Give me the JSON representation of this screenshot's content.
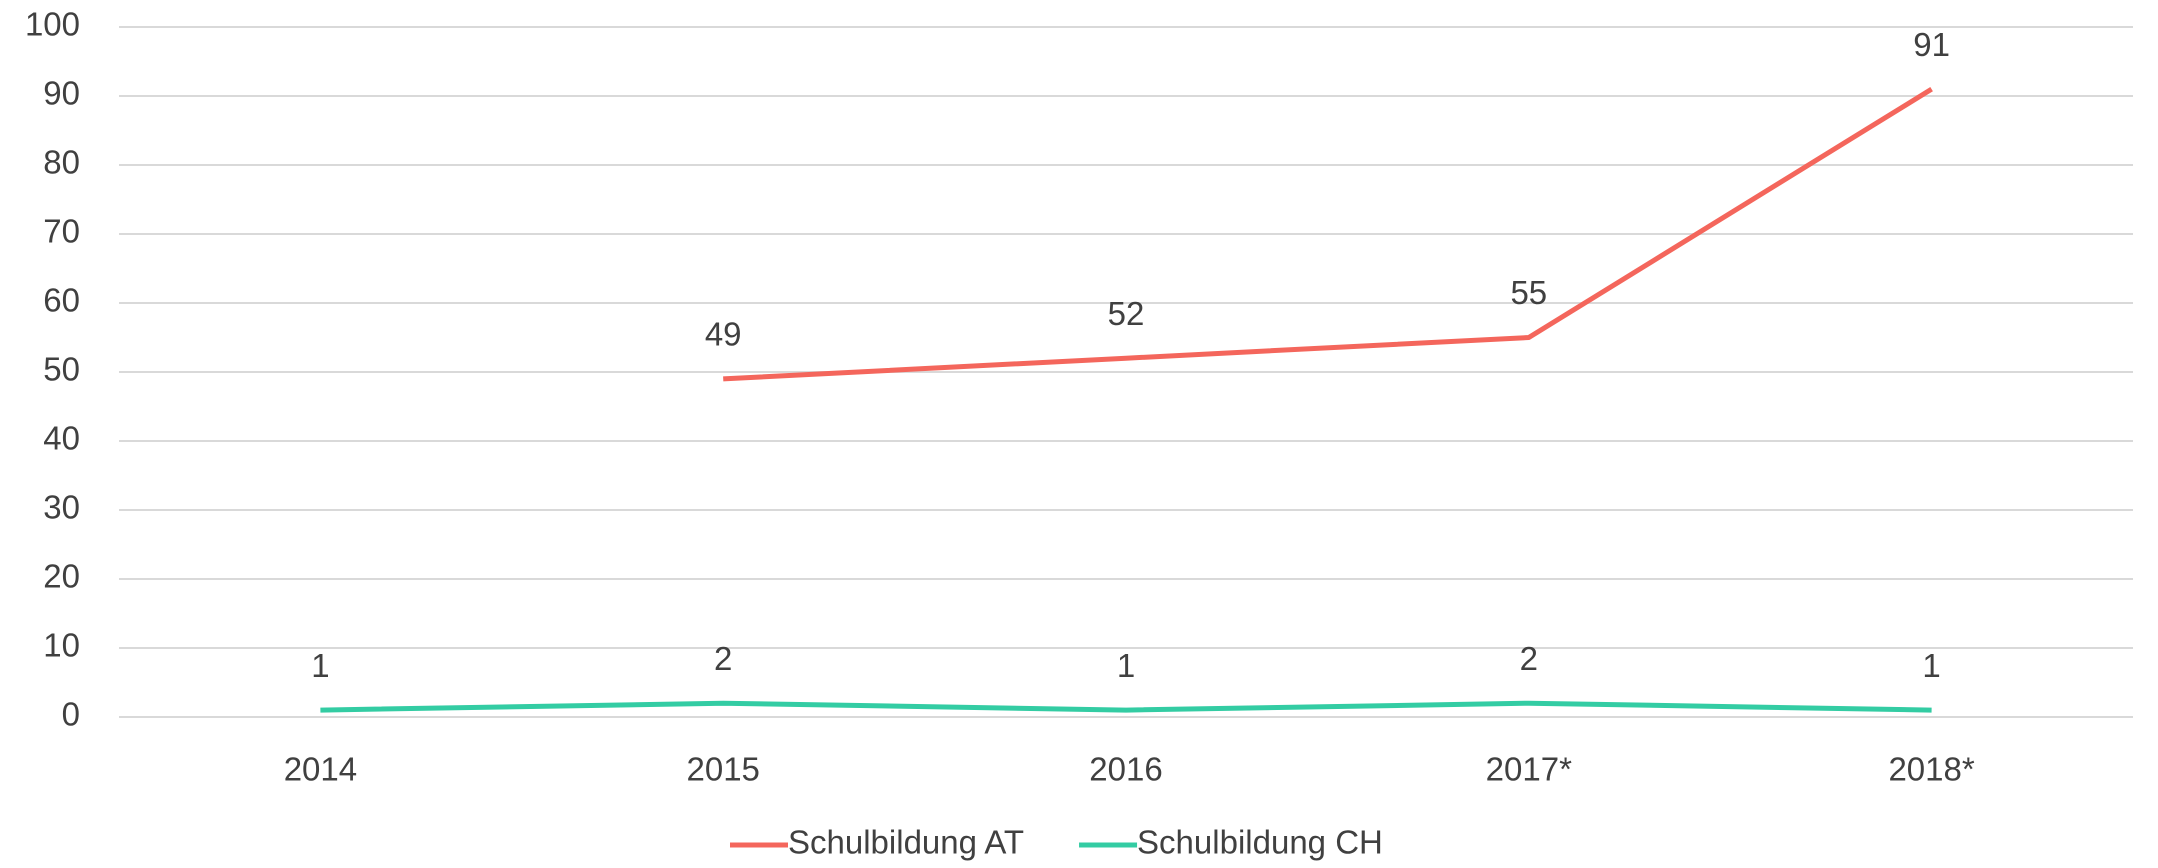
{
  "chart_data": {
    "type": "line",
    "categories": [
      "2014",
      "2015",
      "2016",
      "2017*",
      "2018*"
    ],
    "series": [
      {
        "name": "Schulbildung AT",
        "color": "#f4665c",
        "values": [
          null,
          49,
          52,
          55,
          91
        ]
      },
      {
        "name": "Schulbildung CH",
        "color": "#33cca3",
        "values": [
          1,
          2,
          1,
          2,
          1
        ]
      }
    ],
    "ylim": [
      0,
      100
    ],
    "yticks": [
      0,
      10,
      20,
      30,
      40,
      50,
      60,
      70,
      80,
      90,
      100
    ],
    "grid": true,
    "legend": "bottom"
  }
}
